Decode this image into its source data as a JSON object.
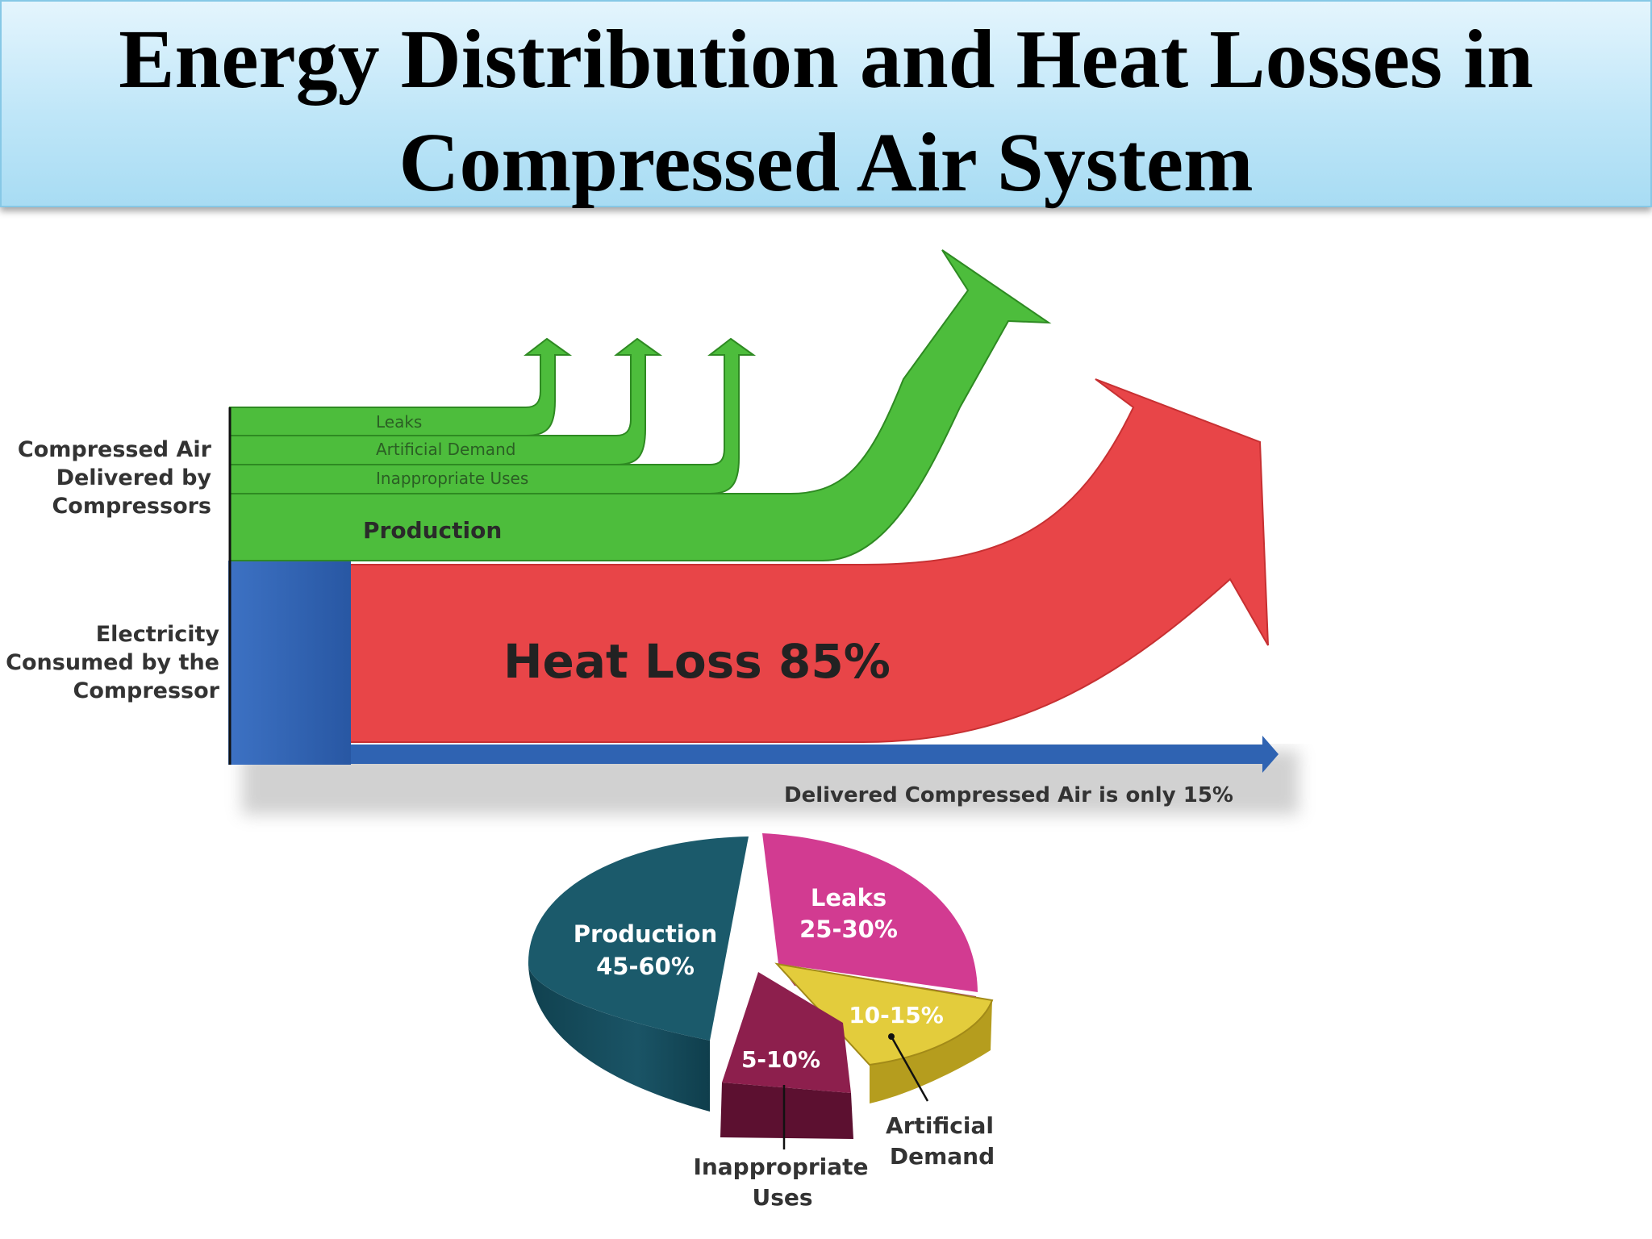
{
  "title": {
    "line1": "Energy Distribution and Heat Losses in",
    "line2": "Compressed Air System"
  },
  "sankey": {
    "left_label_air": [
      "Compressed Air",
      "Delivered by",
      "Compressors"
    ],
    "left_label_elec": [
      "Electricity",
      "Consumed by the",
      "Compressor"
    ],
    "flow_leaks": "Leaks",
    "flow_artificial": "Artificial Demand",
    "flow_inappropriate": "Inappropriate Uses",
    "flow_production": "Production",
    "heat_loss": "Heat Loss 85%",
    "delivered_note": "Delivered Compressed Air is only 15%",
    "colors": {
      "air": "#4dbd3c",
      "heat": "#e84548",
      "electric": "#2f63b2"
    }
  },
  "pie": {
    "production_name": "Production",
    "production_value": "45-60%",
    "leaks_name": "Leaks",
    "leaks_value": "25-30%",
    "artificial_value": "10-15%",
    "artificial_name_1": "Artificial",
    "artificial_name_2": "Demand",
    "inappropriate_value": "5-10%",
    "inappropriate_name_1": "Inappropriate",
    "inappropriate_name_2": "Uses",
    "colors": {
      "production": "#1b5a6b",
      "leaks": "#d23b91",
      "artificial": "#e3cc3c",
      "inappropriate": "#8d1f4d"
    }
  }
}
